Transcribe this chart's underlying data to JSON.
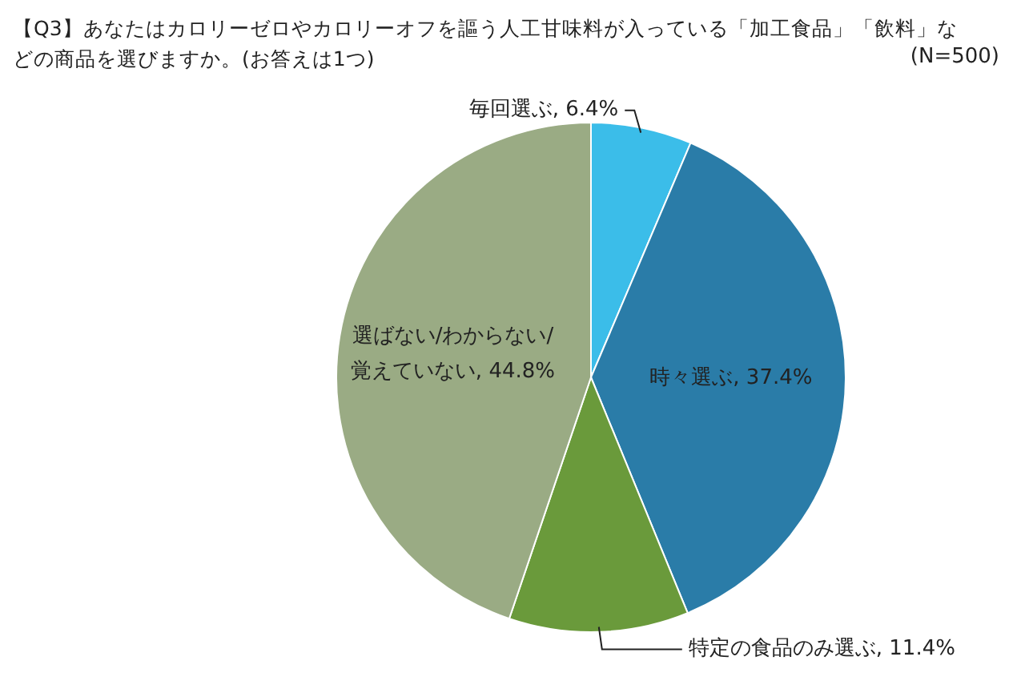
{
  "chart_data": {
    "type": "pie",
    "title": "【Q3】あなたはカロリーゼロやカロリーオフを謳う人工甘味料が入っている「加工食品」「飲料」などの商品を選びますか。(お答えは1つ)",
    "annotations": [
      "(N=500)"
    ],
    "categories": [
      "毎回選ぶ",
      "時々選ぶ",
      "特定の食品のみ選ぶ",
      "選ばない/わからない/覚えていない"
    ],
    "values": [
      6.4,
      37.4,
      11.4,
      44.8
    ],
    "colors": [
      "#3bbde9",
      "#2a7ca8",
      "#6a9a3b",
      "#9aab84"
    ],
    "value_labels": [
      "6.4%",
      "37.4%",
      "11.4%",
      "44.8%"
    ],
    "legend": false
  }
}
